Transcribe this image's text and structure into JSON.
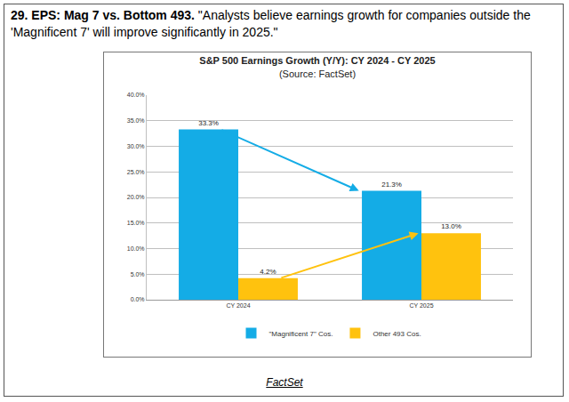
{
  "header": {
    "heading": "29. EPS: Mag 7 vs. Bottom 493.",
    "text": "\"Analysts believe earnings growth for companies outside the 'Magnificent 7' will improve significantly in 2025.\""
  },
  "source": "FactSet",
  "chart_data": {
    "type": "bar",
    "title": "S&P 500 Earnings Growth (Y/Y): CY 2024 - CY 2025",
    "subtitle": "(Source: FactSet)",
    "categories": [
      "CY 2024",
      "CY 2025"
    ],
    "series": [
      {
        "name": "\"Magnificent 7\" Cos.",
        "color": "#14ACE6",
        "values": [
          33.3,
          21.3
        ],
        "value_labels": [
          "33.3%",
          "21.3%"
        ]
      },
      {
        "name": "Other 493 Cos.",
        "color": "#FFC20E",
        "values": [
          4.2,
          13.0
        ],
        "value_labels": [
          "4.2%",
          "13.0%"
        ]
      }
    ],
    "ylim": [
      0,
      40
    ],
    "yticks": [
      {
        "value": 0,
        "label": "0.0%"
      },
      {
        "value": 5,
        "label": "5.0%"
      },
      {
        "value": 10,
        "label": "10.0%"
      },
      {
        "value": 15,
        "label": "15.0%"
      },
      {
        "value": 20,
        "label": "20.0%"
      },
      {
        "value": 25,
        "label": "25.0%"
      },
      {
        "value": 30,
        "label": "30.0%"
      },
      {
        "value": 35,
        "label": "35.0%"
      },
      {
        "value": 40,
        "label": "40.0%"
      }
    ],
    "grid": true,
    "legend": "bottom",
    "data_labels": true
  }
}
